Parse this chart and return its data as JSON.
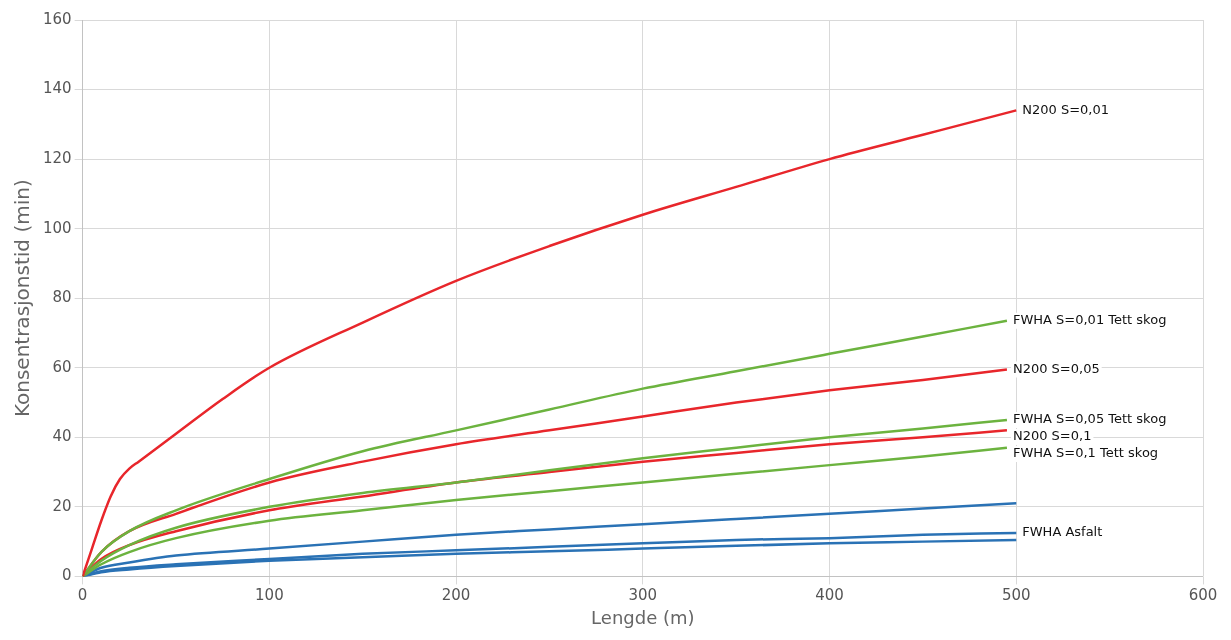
{
  "chart_data": {
    "type": "line",
    "xlabel": "Lengde (m)",
    "ylabel": "Konsentrasjonstid (min)",
    "xlim": [
      0,
      600
    ],
    "xticks": [
      0,
      100,
      200,
      300,
      400,
      500,
      600
    ],
    "ylim": [
      0,
      160
    ],
    "yticks": [
      0,
      20,
      40,
      60,
      80,
      100,
      120,
      140,
      160
    ],
    "grid": true,
    "legend": false,
    "marker": "none",
    "line_style": "solid",
    "series": [
      {
        "name": "N200 S=0,01",
        "color": "#e8262b",
        "x": [
          0,
          5,
          10,
          15,
          20,
          25,
          30,
          40,
          50,
          75,
          100,
          150,
          200,
          250,
          300,
          350,
          400,
          450,
          500
        ],
        "values": [
          0,
          8,
          16,
          23,
          28,
          31,
          33,
          37,
          41,
          51,
          60,
          73,
          85,
          95,
          104,
          112,
          120,
          127,
          134
        ]
      },
      {
        "name": "FWHA S=0,01 Tett skog",
        "color": "#6cb33f",
        "x": [
          0,
          10,
          25,
          50,
          100,
          150,
          200,
          250,
          300,
          350,
          400,
          450,
          495
        ],
        "values": [
          0,
          7,
          13,
          19,
          28,
          36,
          42,
          48,
          54,
          59,
          64,
          69,
          73.5
        ]
      },
      {
        "name": "N200 S=0,05",
        "color": "#e8262b",
        "x": [
          0,
          10,
          25,
          50,
          100,
          150,
          200,
          250,
          300,
          350,
          400,
          450,
          495
        ],
        "values": [
          0,
          7,
          13,
          18,
          27,
          33,
          38,
          42,
          46,
          50,
          53.5,
          56.5,
          59.5
        ]
      },
      {
        "name": "FWHA S=0,05 Tett skog",
        "color": "#6cb33f",
        "x": [
          0,
          10,
          25,
          50,
          100,
          150,
          200,
          250,
          300,
          350,
          400,
          450,
          495
        ],
        "values": [
          0,
          4.5,
          9,
          14,
          20,
          24,
          27,
          30.5,
          34,
          37,
          40,
          42.5,
          45
        ]
      },
      {
        "name": "N200 S=0,1",
        "color": "#e8262b",
        "x": [
          0,
          10,
          25,
          50,
          100,
          150,
          200,
          250,
          300,
          350,
          400,
          450,
          495
        ],
        "values": [
          0,
          5,
          9,
          13,
          19,
          23,
          27,
          30,
          33,
          35.5,
          38,
          40,
          42
        ]
      },
      {
        "name": "FWHA S=0,1 Tett skog",
        "color": "#6cb33f",
        "x": [
          0,
          10,
          25,
          50,
          100,
          150,
          200,
          250,
          300,
          350,
          400,
          450,
          495
        ],
        "values": [
          0,
          3.5,
          7,
          11,
          16,
          19,
          22,
          24.5,
          27,
          29.5,
          32,
          34.5,
          37
        ]
      },
      {
        "color": "#2a72b5",
        "x": [
          0,
          10,
          25,
          50,
          100,
          150,
          200,
          250,
          300,
          350,
          400,
          450,
          500
        ],
        "values": [
          0,
          2.5,
          4,
          6,
          8,
          10,
          12,
          13.5,
          15,
          16.5,
          18,
          19.5,
          21
        ]
      },
      {
        "name": "FWHA Asfalt",
        "color": "#2a72b5",
        "x": [
          0,
          10,
          25,
          50,
          100,
          150,
          200,
          250,
          300,
          350,
          400,
          450,
          500
        ],
        "values": [
          0,
          1.5,
          2.5,
          3.5,
          5,
          6.5,
          7.5,
          8.5,
          9.5,
          10.5,
          11,
          12,
          12.5
        ]
      },
      {
        "color": "#2a72b5",
        "x": [
          0,
          10,
          25,
          50,
          100,
          150,
          200,
          250,
          300,
          350,
          400,
          450,
          500
        ],
        "values": [
          0,
          1.2,
          2,
          3,
          4.5,
          5.5,
          6.5,
          7.2,
          8,
          8.8,
          9.5,
          10,
          10.5
        ]
      }
    ]
  }
}
